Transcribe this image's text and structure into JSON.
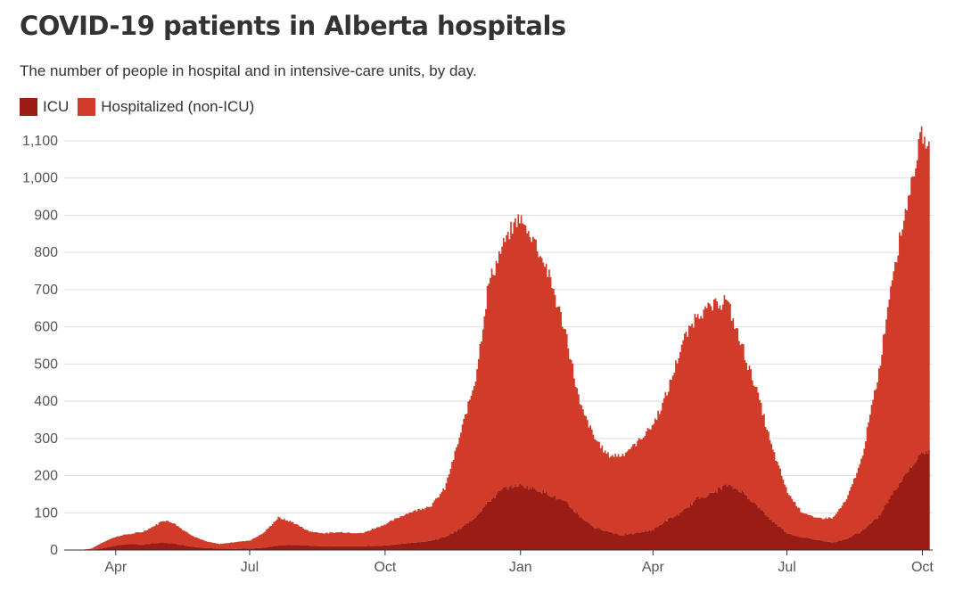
{
  "title": "COVID-19 patients in Alberta hospitals",
  "subtitle": "The number of people in hospital and in intensive-care units, by day.",
  "legend": [
    {
      "label": "ICU",
      "color": "#9a1c14"
    },
    {
      "label": "Hospitalized (non-ICU)",
      "color": "#d13b29"
    }
  ],
  "chart_data": {
    "type": "area",
    "stacked": true,
    "title": "COVID-19 patients in Alberta hospitals",
    "subtitle": "The number of people in hospital and in intensive-care units, by day.",
    "xlabel": "",
    "ylabel": "",
    "ylim": [
      0,
      1100
    ],
    "y_ticks": [
      0,
      100,
      200,
      300,
      400,
      500,
      600,
      700,
      800,
      900,
      1000,
      1100
    ],
    "x_ticks": [
      "Apr",
      "Jul",
      "Oct",
      "Jan",
      "Apr",
      "Jul",
      "Oct"
    ],
    "x_tick_dates": [
      "2020-04-01",
      "2020-07-01",
      "2020-10-01",
      "2021-01-01",
      "2021-04-01",
      "2021-07-01",
      "2021-10-01"
    ],
    "grid": true,
    "legend_position": "top-left",
    "series": [
      {
        "name": "ICU",
        "color": "#9a1c14",
        "points": [
          [
            "2020-03-08",
            0
          ],
          [
            "2020-03-15",
            1
          ],
          [
            "2020-03-22",
            4
          ],
          [
            "2020-03-29",
            10
          ],
          [
            "2020-04-05",
            15
          ],
          [
            "2020-04-12",
            16
          ],
          [
            "2020-04-19",
            14
          ],
          [
            "2020-04-26",
            18
          ],
          [
            "2020-05-03",
            20
          ],
          [
            "2020-05-10",
            18
          ],
          [
            "2020-05-17",
            12
          ],
          [
            "2020-05-24",
            8
          ],
          [
            "2020-06-01",
            5
          ],
          [
            "2020-06-10",
            4
          ],
          [
            "2020-06-20",
            3
          ],
          [
            "2020-07-01",
            4
          ],
          [
            "2020-07-10",
            6
          ],
          [
            "2020-07-20",
            12
          ],
          [
            "2020-07-30",
            14
          ],
          [
            "2020-08-10",
            12
          ],
          [
            "2020-08-20",
            10
          ],
          [
            "2020-09-01",
            10
          ],
          [
            "2020-09-15",
            10
          ],
          [
            "2020-10-01",
            12
          ],
          [
            "2020-10-15",
            18
          ],
          [
            "2020-11-01",
            25
          ],
          [
            "2020-11-10",
            35
          ],
          [
            "2020-11-20",
            55
          ],
          [
            "2020-12-01",
            90
          ],
          [
            "2020-12-10",
            130
          ],
          [
            "2020-12-20",
            165
          ],
          [
            "2020-12-30",
            175
          ],
          [
            "2021-01-10",
            165
          ],
          [
            "2021-01-20",
            150
          ],
          [
            "2021-02-01",
            125
          ],
          [
            "2021-02-10",
            90
          ],
          [
            "2021-02-20",
            60
          ],
          [
            "2021-03-01",
            50
          ],
          [
            "2021-03-10",
            40
          ],
          [
            "2021-03-20",
            45
          ],
          [
            "2021-04-01",
            55
          ],
          [
            "2021-04-10",
            80
          ],
          [
            "2021-04-20",
            100
          ],
          [
            "2021-05-01",
            140
          ],
          [
            "2021-05-10",
            150
          ],
          [
            "2021-05-20",
            175
          ],
          [
            "2021-05-30",
            160
          ],
          [
            "2021-06-10",
            120
          ],
          [
            "2021-06-20",
            80
          ],
          [
            "2021-07-01",
            45
          ],
          [
            "2021-07-10",
            35
          ],
          [
            "2021-07-20",
            28
          ],
          [
            "2021-08-01",
            20
          ],
          [
            "2021-08-10",
            30
          ],
          [
            "2021-08-20",
            50
          ],
          [
            "2021-09-01",
            90
          ],
          [
            "2021-09-10",
            150
          ],
          [
            "2021-09-20",
            210
          ],
          [
            "2021-09-30",
            260
          ],
          [
            "2021-10-05",
            265
          ]
        ]
      },
      {
        "name": "Hospitalized (non-ICU)",
        "color": "#d13b29",
        "points": [
          [
            "2020-03-08",
            0
          ],
          [
            "2020-03-15",
            3
          ],
          [
            "2020-03-22",
            15
          ],
          [
            "2020-03-29",
            22
          ],
          [
            "2020-04-05",
            25
          ],
          [
            "2020-04-12",
            28
          ],
          [
            "2020-04-19",
            35
          ],
          [
            "2020-04-26",
            45
          ],
          [
            "2020-05-03",
            60
          ],
          [
            "2020-05-10",
            55
          ],
          [
            "2020-05-17",
            40
          ],
          [
            "2020-05-24",
            28
          ],
          [
            "2020-06-01",
            18
          ],
          [
            "2020-06-10",
            12
          ],
          [
            "2020-06-20",
            18
          ],
          [
            "2020-07-01",
            22
          ],
          [
            "2020-07-10",
            40
          ],
          [
            "2020-07-20",
            75
          ],
          [
            "2020-07-30",
            60
          ],
          [
            "2020-08-10",
            38
          ],
          [
            "2020-08-20",
            35
          ],
          [
            "2020-09-01",
            38
          ],
          [
            "2020-09-15",
            35
          ],
          [
            "2020-10-01",
            58
          ],
          [
            "2020-10-15",
            80
          ],
          [
            "2020-11-01",
            95
          ],
          [
            "2020-11-10",
            130
          ],
          [
            "2020-11-20",
            245
          ],
          [
            "2020-12-01",
            375
          ],
          [
            "2020-12-10",
            590
          ],
          [
            "2020-12-20",
            655
          ],
          [
            "2020-12-30",
            720
          ],
          [
            "2021-01-10",
            670
          ],
          [
            "2021-01-20",
            590
          ],
          [
            "2021-02-01",
            445
          ],
          [
            "2021-02-10",
            300
          ],
          [
            "2021-02-20",
            240
          ],
          [
            "2021-03-01",
            205
          ],
          [
            "2021-03-10",
            215
          ],
          [
            "2021-03-20",
            240
          ],
          [
            "2021-04-01",
            285
          ],
          [
            "2021-04-10",
            340
          ],
          [
            "2021-04-20",
            450
          ],
          [
            "2021-05-01",
            500
          ],
          [
            "2021-05-10",
            500
          ],
          [
            "2021-05-20",
            500
          ],
          [
            "2021-05-30",
            400
          ],
          [
            "2021-06-10",
            310
          ],
          [
            "2021-06-20",
            200
          ],
          [
            "2021-07-01",
            110
          ],
          [
            "2021-07-10",
            70
          ],
          [
            "2021-07-20",
            57
          ],
          [
            "2021-08-01",
            67
          ],
          [
            "2021-08-10",
            105
          ],
          [
            "2021-08-20",
            190
          ],
          [
            "2021-09-01",
            390
          ],
          [
            "2021-09-10",
            590
          ],
          [
            "2021-09-20",
            720
          ],
          [
            "2021-09-30",
            860
          ],
          [
            "2021-10-05",
            810
          ]
        ]
      }
    ]
  }
}
